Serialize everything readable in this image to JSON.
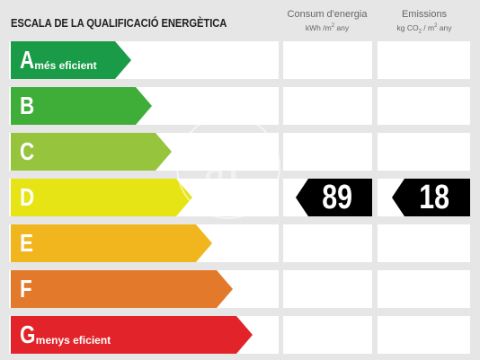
{
  "title": "ESCALA DE LA QUALIFICACIÓ ENERGÈTICA",
  "columns": {
    "consum": {
      "line1": "Consum d'energia",
      "unit_pre": "kWh /m",
      "unit_exp": "2",
      "unit_post": " any"
    },
    "emissions": {
      "line1": "Emissions",
      "unit_pre": "kg CO",
      "unit_sub": "2",
      "unit_mid": " / m",
      "unit_exp": "2",
      "unit_post": " any"
    }
  },
  "ratings": [
    {
      "letter": "A",
      "sublabel": "més eficient",
      "color": "#1a9b47"
    },
    {
      "letter": "B",
      "sublabel": "",
      "color": "#3fae39"
    },
    {
      "letter": "C",
      "sublabel": "",
      "color": "#97c43d"
    },
    {
      "letter": "D",
      "sublabel": "",
      "color": "#e6e414"
    },
    {
      "letter": "E",
      "sublabel": "",
      "color": "#f1b61e"
    },
    {
      "letter": "F",
      "sublabel": "",
      "color": "#e37a2b"
    },
    {
      "letter": "G",
      "sublabel": "menys eficient",
      "color": "#e2242a"
    }
  ],
  "current_rating": "D",
  "values": {
    "consum": "89",
    "emissions": "18"
  }
}
